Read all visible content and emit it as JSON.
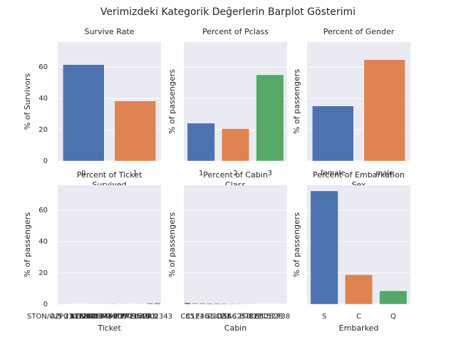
{
  "figure_title": "Verimizdeki Kategorik Değerlerin Barplot Gösterimi",
  "chart_data": [
    {
      "type": "bar",
      "title": "Survive Rate",
      "xlabel": "Survived",
      "ylabel": "% of Survivors",
      "categories": [
        "0",
        "1"
      ],
      "values": [
        61.6,
        38.4
      ],
      "colors": [
        "#4c72b0",
        "#dd8452"
      ],
      "ylim": [
        0,
        76
      ],
      "yticks": [
        0,
        20,
        40,
        60
      ],
      "grid": true,
      "ytick_labels": true
    },
    {
      "type": "bar",
      "title": "Percent of Pclass",
      "xlabel": "Class",
      "ylabel": "% of passengers",
      "categories": [
        "1",
        "2",
        "3"
      ],
      "values": [
        24.2,
        20.7,
        55.1
      ],
      "colors": [
        "#4c72b0",
        "#dd8452",
        "#55a868"
      ],
      "ylim": [
        0,
        76
      ],
      "yticks": [
        0,
        20,
        40,
        60
      ],
      "grid": true,
      "ytick_labels": false
    },
    {
      "type": "bar",
      "title": "Percent of Gender",
      "xlabel": "Sex",
      "ylabel": "% of passengers",
      "categories": [
        "female",
        "male"
      ],
      "values": [
        35.2,
        64.8
      ],
      "colors": [
        "#4c72b0",
        "#dd8452"
      ],
      "ylim": [
        0,
        76
      ],
      "yticks": [
        0,
        20,
        40,
        60
      ],
      "grid": true,
      "ytick_labels": false
    },
    {
      "type": "bar",
      "title": "Percent of Ticket",
      "xlabel": "Ticket",
      "ylabel": "% of passengers",
      "categories": [
        "STON/O2. 3101282",
        "A/5 21171",
        "PC 17599",
        "113803",
        "373450",
        "330877",
        "17463",
        "349909",
        "347742",
        "237736",
        "PP 9549",
        "113783",
        "1601",
        "CA 2343"
      ],
      "values": [
        0.3,
        0.1,
        0.2,
        0.2,
        0.1,
        0.1,
        0.1,
        0.4,
        0.3,
        0.2,
        0.2,
        0.1,
        0.8,
        0.8
      ],
      "colors": [
        "#4c72b0",
        "#dd8452",
        "#55a868",
        "#c44e52",
        "#8172b3",
        "#937860",
        "#da8bc3",
        "#8c8c8c",
        "#ccb974",
        "#64b5cd"
      ],
      "ylim": [
        0,
        76
      ],
      "yticks": [
        0,
        20,
        40,
        60
      ],
      "grid": true,
      "ytick_labels": true
    },
    {
      "type": "bar",
      "title": "Percent of Cabin",
      "xlabel": "Cabin",
      "ylabel": "% of passengers",
      "categories": [
        "C85",
        "C123",
        "E46",
        "G6",
        "C103",
        "D56",
        "A6",
        "C23 C25 C27",
        "B78",
        "D33",
        "B30",
        "C52",
        "B28",
        "F38"
      ],
      "values": [
        1.0,
        0.8,
        0.7,
        0.6,
        0.6,
        0.5,
        0.5,
        0.4,
        0.3,
        0.3,
        0.2,
        0.2,
        0.2,
        0.2
      ],
      "colors": [
        "#4c72b0",
        "#dd8452",
        "#55a868",
        "#c44e52",
        "#8172b3",
        "#937860",
        "#da8bc3",
        "#8c8c8c",
        "#ccb974",
        "#64b5cd"
      ],
      "ylim": [
        0,
        76
      ],
      "yticks": [
        0,
        20,
        40,
        60
      ],
      "grid": true,
      "ytick_labels": false
    },
    {
      "type": "bar",
      "title": "Percent of Embarkation",
      "xlabel": "Embarked",
      "ylabel": "% of passengers",
      "categories": [
        "S",
        "C",
        "Q"
      ],
      "values": [
        72.4,
        18.9,
        8.6
      ],
      "colors": [
        "#4c72b0",
        "#dd8452",
        "#55a868"
      ],
      "ylim": [
        0,
        76
      ],
      "yticks": [
        0,
        20,
        40,
        60
      ],
      "grid": true,
      "ytick_labels": false
    }
  ]
}
